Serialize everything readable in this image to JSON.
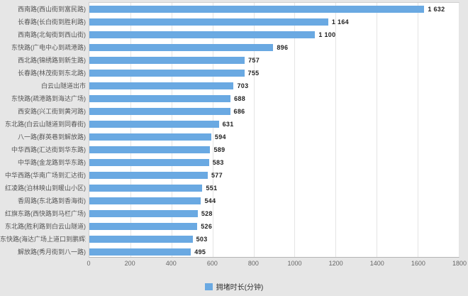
{
  "chart_data": {
    "type": "bar",
    "orientation": "horizontal",
    "title": "",
    "xlabel": "",
    "ylabel": "",
    "xlim": [
      0,
      1800
    ],
    "xticks": [
      0,
      200,
      400,
      600,
      800,
      1000,
      1200,
      1400,
      1600,
      1800
    ],
    "grid": true,
    "legend": {
      "label": "拥堵时长(分钟)",
      "position": "bottom-center"
    },
    "categories": [
      "西南路(西山街到富民路)",
      "长春路(长白街到胜利路)",
      "西南路(北甸街到西山街)",
      "东快路(广电中心到疏港路)",
      "西北路(锦绣路到新生路)",
      "长春路(林茂街到东北路)",
      "白云山隧道出市",
      "东快路(疏港路到海达广场)",
      "西安路(兴工街到黄河路)",
      "东北路(白云山隧道到同春街)",
      "八一路(群英巷到解放路)",
      "中华西路(汇达街到华东路)",
      "中华路(金龙路到华东路)",
      "中华西路(华南广场到汇达街)",
      "红凌路(泊林映山到暖山小区)",
      "香周路(东北路到香海街)",
      "红旗东路(西快路到马栏广场)",
      "东北路(胜利路到白云山隧道)",
      "东快路(海达广场上道口到鹏辉道口)",
      "解放路(秀月街到八一路)"
    ],
    "values": [
      1632,
      1164,
      1100,
      896,
      757,
      755,
      703,
      688,
      686,
      631,
      594,
      589,
      583,
      577,
      551,
      544,
      528,
      526,
      503,
      495
    ],
    "value_labels": [
      "1 632",
      "1 164",
      "1 100",
      "896",
      "757",
      "755",
      "703",
      "688",
      "686",
      "631",
      "594",
      "589",
      "583",
      "577",
      "551",
      "544",
      "528",
      "526",
      "503",
      "495"
    ],
    "colors": {
      "bar": "#6aa9e2",
      "plot_background": "#ffffff",
      "page_background": "#e6e6e6",
      "gridline": "#e4e4e4",
      "axis_text": "#666666",
      "value_text": "#222222",
      "category_text": "#555555"
    }
  }
}
